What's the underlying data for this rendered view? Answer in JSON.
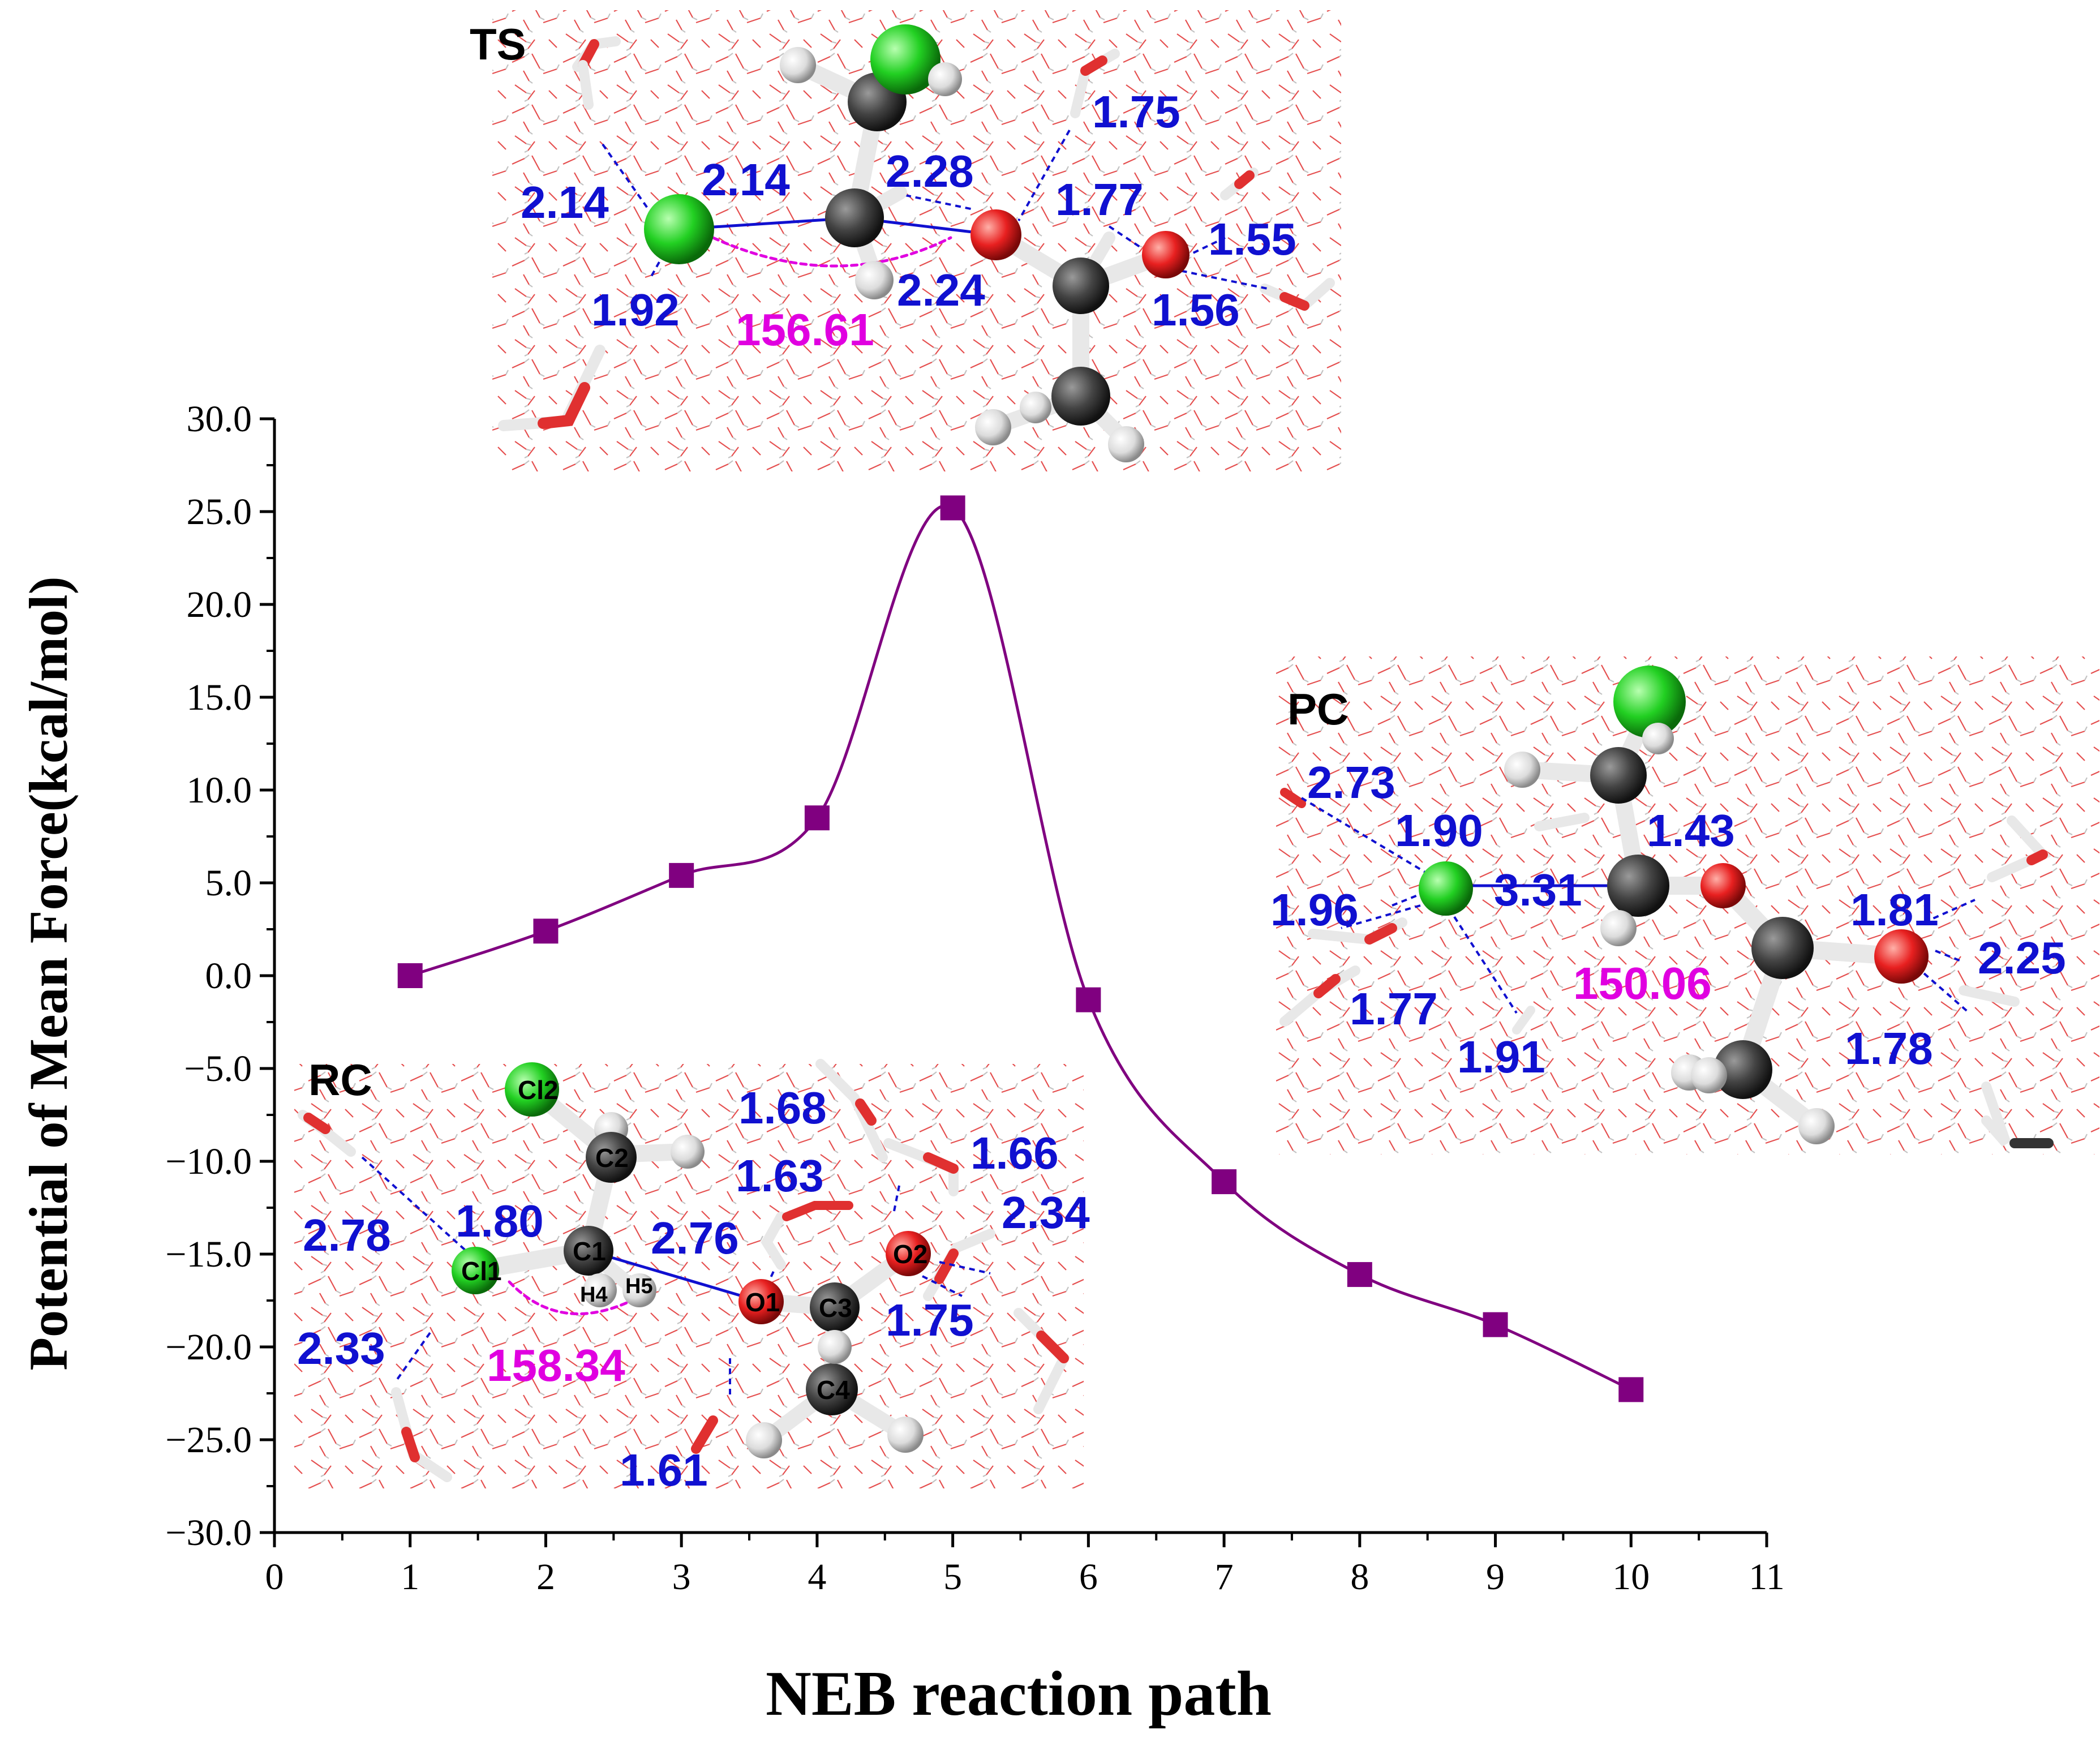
{
  "chart_data": {
    "type": "line",
    "xlabel": "NEB reaction path",
    "ylabel": "Potential of Mean Force(kcal/mol)",
    "xlim": [
      0,
      11
    ],
    "ylim": [
      -30,
      30
    ],
    "xticks": [
      "0",
      "1",
      "2",
      "3",
      "4",
      "5",
      "6",
      "7",
      "8",
      "9",
      "10",
      "11"
    ],
    "yticks": [
      "30.0",
      "25.0",
      "20.0",
      "15.0",
      "10.0",
      "5.0",
      "0.0",
      "−5.0",
      "−10.0",
      "−15.0",
      "−20.0",
      "−25.0",
      "−30.0"
    ],
    "series": [
      {
        "name": "PMF",
        "color": "#800080",
        "x": [
          1,
          2,
          3,
          4,
          5,
          6,
          7,
          8,
          9,
          10
        ],
        "y": [
          0.0,
          2.4,
          5.4,
          8.5,
          25.2,
          -1.3,
          -11.1,
          -16.1,
          -18.8,
          -22.3
        ]
      }
    ]
  },
  "insets": {
    "ts": {
      "title": "TS",
      "angle": "156.61",
      "distances": [
        "2.14",
        "2.14",
        "2.28",
        "1.75",
        "1.77",
        "1.55",
        "1.92",
        "2.24",
        "1.56"
      ]
    },
    "pc": {
      "title": "PC",
      "angle": "150.06",
      "distances": [
        "2.73",
        "1.90",
        "1.43",
        "1.96",
        "3.31",
        "1.81",
        "2.25",
        "1.77",
        "1.91",
        "1.78"
      ]
    },
    "rc": {
      "title": "RC",
      "angle": "158.34",
      "distances": [
        "1.68",
        "1.66",
        "1.63",
        "2.78",
        "1.80",
        "2.76",
        "2.34",
        "2.33",
        "1.75",
        "1.61"
      ],
      "atoms": [
        "Cl2",
        "C2",
        "Cl1",
        "C1",
        "H4",
        "H5",
        "O1",
        "C3",
        "O2",
        "C4"
      ]
    }
  },
  "colors": {
    "distance": "#1010d0",
    "angle": "#e000e0",
    "chlorine": "#20d020",
    "oxygen": "#e02020",
    "carbon": "#404040",
    "hydrogen": "#e8e8e8"
  }
}
